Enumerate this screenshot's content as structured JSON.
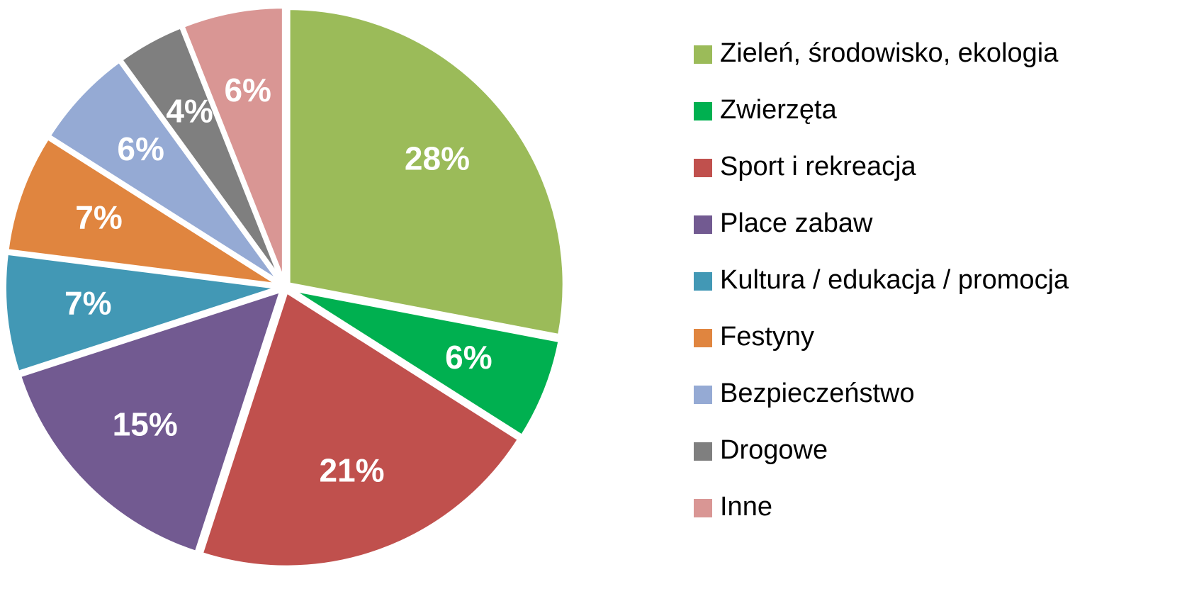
{
  "chart_data": {
    "type": "pie",
    "categories": [
      "Zieleń, środowisko, ekologia",
      "Zwierzęta",
      "Sport i rekreacja",
      "Place zabaw",
      "Kultura / edukacja / promocja",
      "Festyny",
      "Bezpieczeństwo",
      "Drogowe",
      "Inne"
    ],
    "values": [
      28,
      6,
      21,
      15,
      7,
      7,
      6,
      4,
      6
    ],
    "value_labels": [
      "28%",
      "6%",
      "21%",
      "15%",
      "7%",
      "7%",
      "6%",
      "4%",
      "6%"
    ],
    "colors": [
      "#9bbb59",
      "#00b050",
      "#c0504d",
      "#725a91",
      "#4298b5",
      "#e0853f",
      "#95aad4",
      "#7f7f7f",
      "#d99694"
    ],
    "legend": "right"
  }
}
